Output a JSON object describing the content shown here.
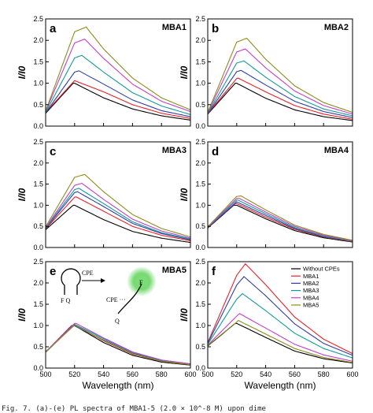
{
  "series_names": [
    "Without CPEs",
    "MBA1",
    "MBA2",
    "MBA3",
    "MBA4",
    "MBA5"
  ],
  "series_colors": [
    "#000000",
    "#e8202a",
    "#2d3fa0",
    "#14999a",
    "#c23fc6",
    "#8c8c1c"
  ],
  "ylabel": "I/I0",
  "xlabel": "Wavelength (nm)",
  "x_ticks": [
    "500",
    "520",
    "540",
    "560",
    "580",
    "600"
  ],
  "y_ticks": [
    "0.0",
    "0.5",
    "1.0",
    "1.5",
    "2.0",
    "2.5"
  ],
  "caption": "Fig. 7. (a)-(e) PL spectra of MBA1-5 (2.0 × 10^-8 M) upon dime",
  "inset": {
    "cpe_arrow": "CPE",
    "cpe_label": "CPE ···",
    "stem_label": "F Q",
    "q_label": "Q",
    "f_label": "F"
  },
  "chart_data": [
    {
      "panel": "a",
      "name": "MBA1",
      "type": "line",
      "xlim": [
        500,
        600
      ],
      "ylim": [
        0,
        2.5
      ],
      "peaks": [
        1.0,
        1.06,
        1.29,
        1.65,
        2.03,
        2.31
      ],
      "peak_x": [
        519,
        520,
        523,
        525,
        527,
        528
      ],
      "x": [
        500,
        520,
        540,
        560,
        580,
        600
      ],
      "series": [
        {
          "name": "Without CPEs",
          "values": [
            0.3,
            1.0,
            0.66,
            0.4,
            0.24,
            0.14
          ]
        },
        {
          "name": "MBA1",
          "values": [
            0.32,
            1.06,
            0.8,
            0.5,
            0.3,
            0.18
          ]
        },
        {
          "name": "MBA2",
          "values": [
            0.31,
            1.26,
            0.98,
            0.61,
            0.36,
            0.22
          ]
        },
        {
          "name": "MBA3",
          "values": [
            0.32,
            1.59,
            1.26,
            0.78,
            0.47,
            0.27
          ]
        },
        {
          "name": "MBA4",
          "values": [
            0.34,
            1.94,
            1.58,
            0.98,
            0.58,
            0.34
          ]
        },
        {
          "name": "MBA5",
          "values": [
            0.35,
            2.2,
            1.8,
            1.12,
            0.66,
            0.38
          ]
        }
      ]
    },
    {
      "panel": "b",
      "name": "MBA2",
      "type": "line",
      "xlim": [
        500,
        600
      ],
      "ylim": [
        0,
        2.5
      ],
      "peaks": [
        1.0,
        1.12,
        1.3,
        1.52,
        1.8,
        2.05
      ],
      "peak_x": [
        519,
        521,
        523,
        525,
        526,
        527
      ],
      "x": [
        500,
        520,
        540,
        560,
        580,
        600
      ],
      "series": [
        {
          "name": "Without CPEs",
          "values": [
            0.28,
            1.0,
            0.65,
            0.38,
            0.22,
            0.13
          ]
        },
        {
          "name": "MBA1",
          "values": [
            0.29,
            1.11,
            0.8,
            0.48,
            0.28,
            0.16
          ]
        },
        {
          "name": "MBA2",
          "values": [
            0.29,
            1.27,
            0.96,
            0.58,
            0.34,
            0.2
          ]
        },
        {
          "name": "MBA3",
          "values": [
            0.3,
            1.47,
            1.14,
            0.69,
            0.4,
            0.24
          ]
        },
        {
          "name": "MBA4",
          "values": [
            0.31,
            1.73,
            1.36,
            0.82,
            0.48,
            0.28
          ]
        },
        {
          "name": "MBA5",
          "values": [
            0.32,
            1.96,
            1.56,
            0.94,
            0.55,
            0.32
          ]
        }
      ]
    },
    {
      "panel": "c",
      "name": "MBA3",
      "type": "line",
      "xlim": [
        500,
        600
      ],
      "ylim": [
        0,
        2.5
      ],
      "peaks": [
        1.0,
        1.2,
        1.32,
        1.4,
        1.52,
        1.73
      ],
      "peak_x": [
        519,
        521,
        522,
        523,
        525,
        527
      ],
      "x": [
        500,
        520,
        540,
        560,
        580,
        600
      ],
      "series": [
        {
          "name": "Without CPEs",
          "values": [
            0.42,
            1.0,
            0.66,
            0.38,
            0.22,
            0.12
          ]
        },
        {
          "name": "MBA1",
          "values": [
            0.44,
            1.19,
            0.86,
            0.5,
            0.29,
            0.16
          ]
        },
        {
          "name": "MBA2",
          "values": [
            0.45,
            1.3,
            0.97,
            0.57,
            0.33,
            0.18
          ]
        },
        {
          "name": "MBA3",
          "values": [
            0.46,
            1.37,
            1.04,
            0.61,
            0.35,
            0.2
          ]
        },
        {
          "name": "MBA4",
          "values": [
            0.47,
            1.47,
            1.14,
            0.67,
            0.39,
            0.22
          ]
        },
        {
          "name": "MBA5",
          "values": [
            0.49,
            1.66,
            1.32,
            0.78,
            0.45,
            0.25
          ]
        }
      ]
    },
    {
      "panel": "d",
      "name": "MBA4",
      "type": "line",
      "xlim": [
        500,
        600
      ],
      "ylim": [
        0,
        2.5
      ],
      "peaks": [
        1.0,
        1.04,
        1.08,
        1.12,
        1.16,
        1.22
      ],
      "peak_x": [
        518,
        519,
        520,
        521,
        522,
        523
      ],
      "x": [
        500,
        520,
        540,
        560,
        580,
        600
      ],
      "series": [
        {
          "name": "Without CPEs",
          "values": [
            0.46,
            1.0,
            0.68,
            0.4,
            0.23,
            0.13
          ]
        },
        {
          "name": "MBA1",
          "values": [
            0.47,
            1.04,
            0.72,
            0.43,
            0.25,
            0.14
          ]
        },
        {
          "name": "MBA2",
          "values": [
            0.47,
            1.08,
            0.76,
            0.45,
            0.26,
            0.15
          ]
        },
        {
          "name": "MBA3",
          "values": [
            0.48,
            1.12,
            0.8,
            0.47,
            0.27,
            0.15
          ]
        },
        {
          "name": "MBA4",
          "values": [
            0.48,
            1.16,
            0.84,
            0.5,
            0.29,
            0.16
          ]
        },
        {
          "name": "MBA5",
          "values": [
            0.49,
            1.21,
            0.89,
            0.53,
            0.31,
            0.17
          ]
        }
      ]
    },
    {
      "panel": "e",
      "name": "MBA5",
      "type": "line",
      "xlim": [
        500,
        600
      ],
      "ylim": [
        0,
        2.5
      ],
      "peaks": [
        1.0,
        1.02,
        0.99,
        1.03,
        1.05,
        1.01
      ],
      "peak_x": [
        518,
        519,
        519,
        520,
        521,
        520
      ],
      "x": [
        500,
        520,
        540,
        560,
        580,
        600
      ],
      "series": [
        {
          "name": "Without CPEs",
          "values": [
            0.38,
            1.0,
            0.6,
            0.3,
            0.14,
            0.07
          ]
        },
        {
          "name": "MBA1",
          "values": [
            0.38,
            1.02,
            0.64,
            0.33,
            0.16,
            0.08
          ]
        },
        {
          "name": "MBA2",
          "values": [
            0.37,
            0.99,
            0.66,
            0.35,
            0.17,
            0.09
          ]
        },
        {
          "name": "MBA3",
          "values": [
            0.38,
            1.03,
            0.69,
            0.37,
            0.18,
            0.09
          ]
        },
        {
          "name": "MBA4",
          "values": [
            0.38,
            1.05,
            0.71,
            0.38,
            0.19,
            0.1
          ]
        },
        {
          "name": "MBA5",
          "values": [
            0.38,
            1.01,
            0.65,
            0.34,
            0.16,
            0.08
          ]
        }
      ]
    },
    {
      "panel": "f",
      "name": "",
      "type": "line",
      "xlim": [
        500,
        600
      ],
      "ylim": [
        0,
        2.5
      ],
      "legend": "top-right",
      "peaks": [
        1.05,
        2.45,
        2.15,
        1.75,
        1.28,
        1.12
      ],
      "peak_x": [
        519,
        526,
        525,
        524,
        522,
        521
      ],
      "x": [
        500,
        520,
        540,
        560,
        580,
        600
      ],
      "series": [
        {
          "name": "Without CPEs",
          "values": [
            0.52,
            1.05,
            0.72,
            0.4,
            0.22,
            0.12
          ]
        },
        {
          "name": "MBA1",
          "values": [
            0.6,
            2.18,
            1.96,
            1.2,
            0.68,
            0.34
          ]
        },
        {
          "name": "MBA2",
          "values": [
            0.58,
            1.95,
            1.7,
            1.04,
            0.58,
            0.3
          ]
        },
        {
          "name": "MBA3",
          "values": [
            0.56,
            1.62,
            1.35,
            0.82,
            0.46,
            0.24
          ]
        },
        {
          "name": "MBA4",
          "values": [
            0.54,
            1.22,
            0.94,
            0.56,
            0.31,
            0.16
          ]
        },
        {
          "name": "MBA5",
          "values": [
            0.53,
            1.08,
            0.8,
            0.46,
            0.25,
            0.13
          ]
        }
      ]
    }
  ]
}
